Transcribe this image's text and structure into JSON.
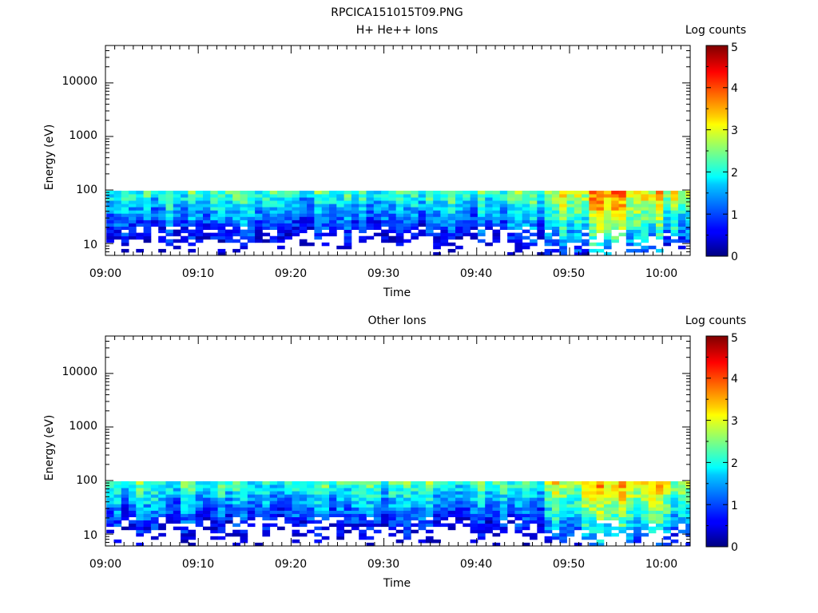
{
  "figure_title": "RPCICA151015T09.PNG",
  "chart_data": [
    {
      "type": "heatmap",
      "title": "H+ He++ Ions",
      "xlabel": "Time",
      "ylabel": "Energy (eV)",
      "x_ticks": [
        "09:00",
        "09:10",
        "09:20",
        "09:30",
        "09:40",
        "09:50",
        "10:00"
      ],
      "x_range": [
        "09:00",
        "10:03"
      ],
      "y_scale": "log",
      "y_ticks": [
        "10",
        "100",
        "1000",
        "10000"
      ],
      "y_range": [
        6,
        50000
      ],
      "colorbar": {
        "label": "Log counts",
        "ticks": [
          "0",
          "1",
          "2",
          "3",
          "4",
          "5"
        ],
        "range": [
          0,
          5
        ],
        "colormap": "jet"
      },
      "data_energy_range_eV": [
        6,
        97
      ],
      "mean_log_counts_by_interval": [
        {
          "time": "09:00-09:10",
          "value": 1.6
        },
        {
          "time": "09:10-09:20",
          "value": 1.6
        },
        {
          "time": "09:20-09:30",
          "value": 1.5
        },
        {
          "time": "09:30-09:40",
          "value": 1.6
        },
        {
          "time": "09:40-09:47",
          "value": 1.7
        },
        {
          "time": "09:47-09:52",
          "value": 2.5
        },
        {
          "time": "09:52-09:56",
          "value": 3.1
        },
        {
          "time": "09:56-10:00",
          "value": 2.8
        },
        {
          "time": "10:00-10:03",
          "value": 2.4
        }
      ]
    },
    {
      "type": "heatmap",
      "title": "Other Ions",
      "xlabel": "Time",
      "ylabel": "Energy (eV)",
      "x_ticks": [
        "09:00",
        "09:10",
        "09:20",
        "09:30",
        "09:40",
        "09:50",
        "10:00"
      ],
      "x_range": [
        "09:00",
        "10:03"
      ],
      "y_scale": "log",
      "y_ticks": [
        "10",
        "100",
        "1000",
        "10000"
      ],
      "y_range": [
        6,
        50000
      ],
      "colorbar": {
        "label": "Log counts",
        "ticks": [
          "0",
          "1",
          "2",
          "3",
          "4",
          "5"
        ],
        "range": [
          0,
          5
        ],
        "colormap": "jet"
      },
      "data_energy_range_eV": [
        6,
        97
      ],
      "mean_log_counts_by_interval": [
        {
          "time": "09:00-09:10",
          "value": 1.6
        },
        {
          "time": "09:10-09:20",
          "value": 1.6
        },
        {
          "time": "09:20-09:30",
          "value": 1.6
        },
        {
          "time": "09:30-09:40",
          "value": 1.6
        },
        {
          "time": "09:40-09:47",
          "value": 1.6
        },
        {
          "time": "09:47-09:52",
          "value": 2.5
        },
        {
          "time": "09:52-09:56",
          "value": 3.0
        },
        {
          "time": "09:56-10:00",
          "value": 2.8
        },
        {
          "time": "10:00-10:03",
          "value": 2.3
        }
      ]
    }
  ]
}
